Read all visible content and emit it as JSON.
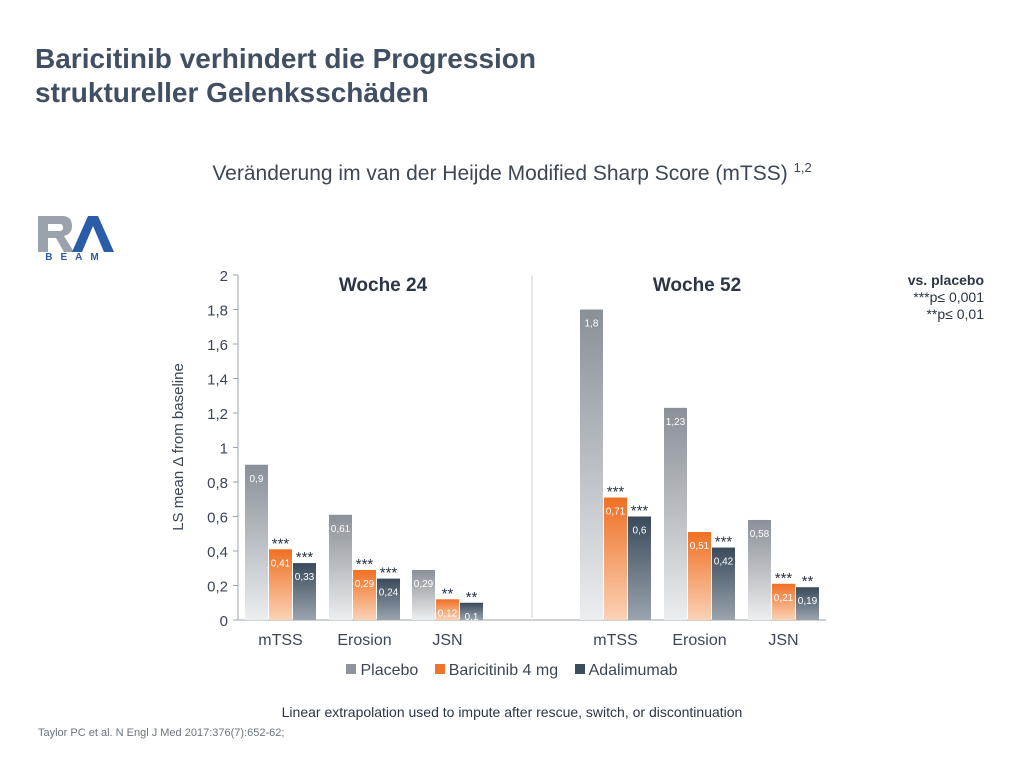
{
  "header": {
    "title_line1": "Baricitinib verhindert die Progression",
    "title_line2": "struktureller Gelenksschäden",
    "subtitle": "Veränderung im van der Heijde Modified Sharp Score (mTSS)",
    "subtitle_sup": "1,2"
  },
  "logo": {
    "brand": "RA",
    "sub": "BEAM"
  },
  "significance": {
    "title": "vs. placebo",
    "line1": "***p≤ 0,001",
    "line2": "**p≤ 0,01"
  },
  "footer": {
    "note": "Linear extrapolation used to impute after rescue, switch, or discontinuation",
    "reference": "Taylor PC et al. N Engl J Med 2017:376(7):652-62;"
  },
  "colors": {
    "placebo": "#8e949b",
    "baricitinib": "#ef7427",
    "adalimumab": "#3b4c5e",
    "axis_text": "#3c4655"
  },
  "chart_data": {
    "type": "bar",
    "ylabel": "LS mean Δ from baseline",
    "ylim": [
      0,
      2
    ],
    "yticks": [
      "0",
      "0,2",
      "0,4",
      "0,6",
      "0,8",
      "1",
      "1,2",
      "1,4",
      "1,6",
      "1,8",
      "2"
    ],
    "ytick_values": [
      0,
      0.2,
      0.4,
      0.6,
      0.8,
      1,
      1.2,
      1.4,
      1.6,
      1.8,
      2
    ],
    "legend": [
      "Placebo",
      "Baricitinib 4 mg",
      "Adalimumab"
    ],
    "groups": [
      {
        "label": "Woche 24",
        "categories": [
          {
            "name": "mTSS",
            "values": [
              0.9,
              0.41,
              0.33
            ],
            "labels": [
              "0,9",
              "0,41",
              "0,33"
            ],
            "sig": [
              "",
              "***",
              "***"
            ]
          },
          {
            "name": "Erosion",
            "values": [
              0.61,
              0.29,
              0.24
            ],
            "labels": [
              "0,61",
              "0,29",
              "0,24"
            ],
            "sig": [
              "",
              "***",
              "***"
            ]
          },
          {
            "name": "JSN",
            "values": [
              0.29,
              0.12,
              0.1
            ],
            "labels": [
              "0,29",
              "0,12",
              "0,1"
            ],
            "sig": [
              "",
              "**",
              "**"
            ]
          }
        ]
      },
      {
        "label": "Woche 52",
        "categories": [
          {
            "name": "mTSS",
            "values": [
              1.8,
              0.71,
              0.6
            ],
            "labels": [
              "1,8",
              "0,71",
              "0,6"
            ],
            "sig": [
              "",
              "***",
              "***"
            ]
          },
          {
            "name": "Erosion",
            "values": [
              1.23,
              0.51,
              0.42
            ],
            "labels": [
              "1,23",
              "0,51",
              "0,42"
            ],
            "sig": [
              "",
              "",
              "***"
            ]
          },
          {
            "name": "JSN",
            "values": [
              0.58,
              0.21,
              0.19
            ],
            "labels": [
              "0,58",
              "0,21",
              "0,19"
            ],
            "sig": [
              "",
              "***",
              "**"
            ]
          }
        ]
      }
    ]
  }
}
